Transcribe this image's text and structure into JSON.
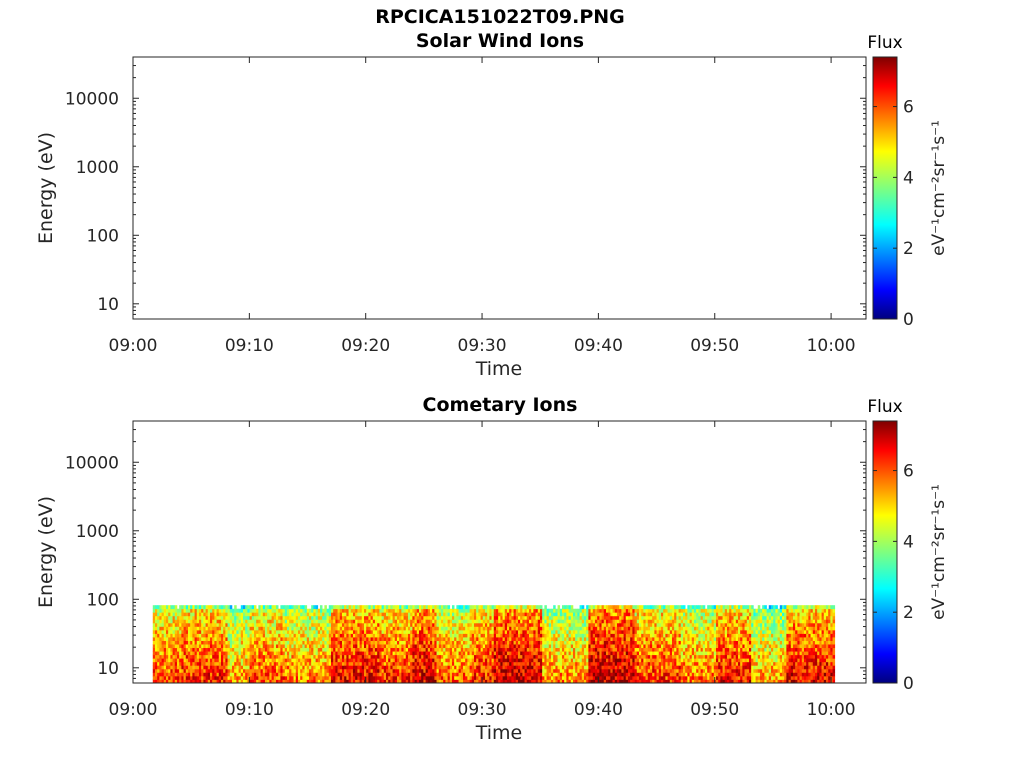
{
  "figure_title": "RPCICA151022T09.PNG",
  "colors": {
    "colormap": [
      "#00007f",
      "#0000ff",
      "#007fff",
      "#00ffff",
      "#7fff7f",
      "#ffff00",
      "#ff7f00",
      "#ff0000",
      "#7f0000"
    ]
  },
  "chart_data": [
    {
      "type": "heatmap",
      "title": "Solar Wind Ions",
      "xlabel": "Time",
      "ylabel": "Energy (eV)",
      "x_ticks": [
        "09:00",
        "09:10",
        "09:20",
        "09:30",
        "09:40",
        "09:50",
        "10:00"
      ],
      "x_range_min": [
        0,
        63
      ],
      "y_scale": "log",
      "y_ticks": [
        "10",
        "100",
        "1000",
        "10000"
      ],
      "y_tick_values": [
        10,
        100,
        1000,
        10000
      ],
      "y_range": [
        6,
        40000
      ],
      "colorbar": {
        "title": "Flux",
        "label": "eV⁻¹cm⁻²sr⁻¹s⁻¹",
        "ticks": [
          "0",
          "2",
          "4",
          "6"
        ],
        "tick_values": [
          0,
          2,
          4,
          6
        ],
        "range": [
          0,
          7.4
        ]
      },
      "data": "empty"
    },
    {
      "type": "heatmap",
      "title": "Cometary Ions",
      "xlabel": "Time",
      "ylabel": "Energy (eV)",
      "x_ticks": [
        "09:00",
        "09:10",
        "09:20",
        "09:30",
        "09:40",
        "09:50",
        "10:00"
      ],
      "x_range_min": [
        0,
        63
      ],
      "y_scale": "log",
      "y_ticks": [
        "10",
        "100",
        "1000",
        "10000"
      ],
      "y_tick_values": [
        10,
        100,
        1000,
        10000
      ],
      "y_range": [
        6,
        40000
      ],
      "colorbar": {
        "title": "Flux",
        "label": "eV⁻¹cm⁻²sr⁻¹s⁻¹",
        "ticks": [
          "0",
          "2",
          "4",
          "6"
        ],
        "tick_values": [
          0,
          2,
          4,
          6
        ],
        "range": [
          0,
          7.4
        ]
      },
      "data": {
        "time_range_min": [
          1.7,
          60.3
        ],
        "energy_range_eV": [
          6,
          82
        ],
        "flux_segments": [
          {
            "t": [
              1.7,
              4
            ],
            "flux": 6.0
          },
          {
            "t": [
              4,
              8
            ],
            "flux": 6.3
          },
          {
            "t": [
              8,
              10
            ],
            "flux": 5.4
          },
          {
            "t": [
              10,
              13
            ],
            "flux": 6.0
          },
          {
            "t": [
              13,
              17
            ],
            "flux": 5.6
          },
          {
            "t": [
              17,
              21
            ],
            "flux": 6.6
          },
          {
            "t": [
              21,
              24
            ],
            "flux": 6.2
          },
          {
            "t": [
              24,
              26
            ],
            "flux": 6.8
          },
          {
            "t": [
              26,
              29
            ],
            "flux": 5.8
          },
          {
            "t": [
              29,
              31
            ],
            "flux": 6.3
          },
          {
            "t": [
              31,
              35
            ],
            "flux": 6.9
          },
          {
            "t": [
              35,
              39
            ],
            "flux": 5.5
          },
          {
            "t": [
              39,
              43
            ],
            "flux": 7.0
          },
          {
            "t": [
              43,
              47
            ],
            "flux": 6.2
          },
          {
            "t": [
              47,
              50
            ],
            "flux": 5.7
          },
          {
            "t": [
              50,
              53
            ],
            "flux": 6.4
          },
          {
            "t": [
              53,
              56
            ],
            "flux": 5.3
          },
          {
            "t": [
              56,
              60.3
            ],
            "flux": 6.6
          }
        ]
      }
    }
  ]
}
